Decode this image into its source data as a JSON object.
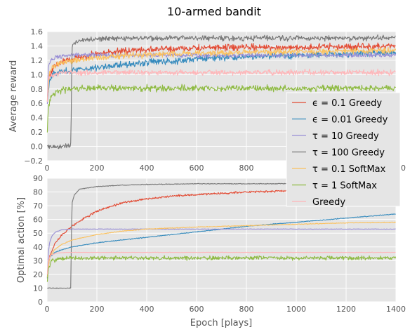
{
  "title": "10-armed bandit",
  "colors": {
    "background": "#e5e5e5",
    "grid": "#ffffff",
    "eps01": "#e24a33",
    "eps001": "#348abd",
    "tau10": "#988ed5",
    "tau100": "#777777",
    "tau01": "#fbc15e",
    "tau1": "#8eba42",
    "greedy": "#ffb5b8"
  },
  "legend": [
    {
      "key": "eps01",
      "label": "ϵ = 0.1 Greedy"
    },
    {
      "key": "eps001",
      "label": "ϵ = 0.01 Greedy"
    },
    {
      "key": "tau10",
      "label": "τ = 10 Greedy"
    },
    {
      "key": "tau100",
      "label": "τ = 100 Greedy"
    },
    {
      "key": "tau01",
      "label": "τ = 0.1 SoftMax"
    },
    {
      "key": "tau1",
      "label": "τ = 1 SoftMax"
    },
    {
      "key": "greedy",
      "label": "Greedy"
    }
  ],
  "chart_data": [
    {
      "type": "line",
      "ylabel": "Average reward",
      "xlabel": "",
      "xlim": [
        0,
        1400
      ],
      "ylim": [
        -0.2,
        1.6
      ],
      "xticks": [
        0,
        200,
        400,
        600,
        800,
        1000,
        1200,
        1400
      ],
      "xticklabels": [
        "0",
        "200",
        "400",
        "600",
        "800",
        "",
        "",
        "1400"
      ],
      "yticks": [
        -0.2,
        0.0,
        0.2,
        0.4,
        0.6,
        0.8,
        1.0,
        1.2,
        1.4,
        1.6
      ],
      "yticklabels": [
        "−0.2",
        "0.0",
        "0.2",
        "0.4",
        "0.6",
        "0.8",
        "1.0",
        "1.2",
        "1.4",
        "1.6"
      ],
      "grid": true,
      "noise": {
        "eps01": 0.05,
        "eps001": 0.05,
        "tau10": 0.035,
        "tau100": 0.04,
        "tau01": 0.045,
        "tau1": 0.045,
        "greedy": 0.04
      },
      "series": [
        {
          "key": "eps01",
          "x": [
            1,
            10,
            30,
            60,
            100,
            150,
            200,
            300,
            400,
            600,
            800,
            1000,
            1200,
            1400
          ],
          "y": [
            0.62,
            1.0,
            1.12,
            1.18,
            1.22,
            1.26,
            1.29,
            1.33,
            1.35,
            1.37,
            1.38,
            1.38,
            1.39,
            1.39
          ]
        },
        {
          "key": "eps001",
          "x": [
            1,
            10,
            30,
            60,
            100,
            200,
            300,
            400,
            500,
            600,
            800,
            1000,
            1200,
            1400
          ],
          "y": [
            0.62,
            0.95,
            1.02,
            1.04,
            1.06,
            1.1,
            1.14,
            1.17,
            1.19,
            1.22,
            1.25,
            1.27,
            1.29,
            1.31
          ]
        },
        {
          "key": "tau10",
          "x": [
            1,
            5,
            15,
            30,
            60,
            100,
            200,
            400,
            600,
            800,
            1000,
            1200,
            1400
          ],
          "y": [
            0.6,
            1.1,
            1.2,
            1.24,
            1.26,
            1.27,
            1.27,
            1.27,
            1.27,
            1.27,
            1.27,
            1.27,
            1.27
          ]
        },
        {
          "key": "tau100",
          "x": [
            1,
            5,
            20,
            60,
            90,
            96,
            100,
            110,
            130,
            200,
            400,
            600,
            800,
            1000,
            1200,
            1400
          ],
          "y": [
            0.0,
            0.0,
            -0.01,
            0.0,
            0.01,
            0.05,
            1.38,
            1.44,
            1.48,
            1.5,
            1.51,
            1.51,
            1.51,
            1.51,
            1.51,
            1.51
          ]
        },
        {
          "key": "tau01",
          "x": [
            1,
            10,
            30,
            60,
            100,
            200,
            300,
            400,
            600,
            800,
            1000,
            1200,
            1400
          ],
          "y": [
            0.65,
            1.05,
            1.13,
            1.17,
            1.19,
            1.23,
            1.26,
            1.28,
            1.3,
            1.31,
            1.32,
            1.33,
            1.34
          ]
        },
        {
          "key": "tau1",
          "x": [
            1,
            5,
            15,
            40,
            80,
            150,
            300,
            600,
            900,
            1200,
            1400
          ],
          "y": [
            0.2,
            0.55,
            0.7,
            0.77,
            0.8,
            0.81,
            0.81,
            0.81,
            0.81,
            0.81,
            0.81
          ]
        },
        {
          "key": "greedy",
          "x": [
            1,
            5,
            15,
            40,
            80,
            150,
            300,
            600,
            900,
            1200,
            1400
          ],
          "y": [
            0.6,
            0.95,
            1.0,
            1.02,
            1.03,
            1.03,
            1.03,
            1.03,
            1.03,
            1.03,
            1.03
          ]
        }
      ]
    },
    {
      "type": "line",
      "ylabel": "Optimal action [%]",
      "xlabel": "Epoch [plays]",
      "xlim": [
        0,
        1400
      ],
      "ylim": [
        0,
        90
      ],
      "xticks": [
        0,
        200,
        400,
        600,
        800,
        1000,
        1200,
        1400
      ],
      "xticklabels": [
        "0",
        "200",
        "400",
        "600",
        "800",
        "1000",
        "1200",
        "1400"
      ],
      "yticks": [
        0,
        10,
        20,
        30,
        40,
        50,
        60,
        70,
        80,
        90
      ],
      "yticklabels": [
        "0",
        "10",
        "20",
        "30",
        "40",
        "50",
        "60",
        "70",
        "80",
        "90"
      ],
      "grid": true,
      "noise": {
        "eps01": 0.8,
        "eps001": 0.3,
        "tau10": 0.2,
        "tau100": 0.3,
        "tau01": 0.3,
        "tau1": 1.6,
        "greedy": 0.2
      },
      "series": [
        {
          "key": "eps01",
          "x": [
            1,
            10,
            30,
            60,
            100,
            150,
            200,
            300,
            400,
            500,
            600,
            800,
            1000,
            1200,
            1400
          ],
          "y": [
            18,
            33,
            42,
            49,
            55,
            61,
            66,
            72,
            75,
            77,
            78,
            80,
            81,
            81.5,
            82
          ]
        },
        {
          "key": "eps001",
          "x": [
            1,
            10,
            30,
            60,
            100,
            200,
            300,
            400,
            600,
            800,
            1000,
            1200,
            1400
          ],
          "y": [
            17,
            32,
            36,
            38,
            40,
            43,
            45,
            47,
            51,
            55,
            58,
            61,
            64
          ]
        },
        {
          "key": "tau10",
          "x": [
            1,
            5,
            10,
            20,
            35,
            60,
            100,
            200,
            400,
            800,
            1400
          ],
          "y": [
            18,
            35,
            43,
            48,
            51,
            52.5,
            53,
            53,
            53,
            53,
            53
          ]
        },
        {
          "key": "tau100",
          "x": [
            1,
            10,
            60,
            95,
            100,
            110,
            130,
            200,
            300,
            400,
            600,
            800,
            1000,
            1200,
            1400
          ],
          "y": [
            10,
            10,
            10,
            10,
            72,
            78,
            82,
            84,
            85,
            85.5,
            86,
            86,
            86,
            86,
            86
          ]
        },
        {
          "key": "tau01",
          "x": [
            1,
            10,
            30,
            60,
            100,
            150,
            200,
            300,
            400,
            600,
            800,
            1000,
            1200,
            1400
          ],
          "y": [
            18,
            32,
            38,
            42,
            45,
            47,
            49,
            51.5,
            53,
            54.5,
            55.5,
            56.5,
            57.5,
            58
          ]
        },
        {
          "key": "tau1",
          "x": [
            1,
            5,
            15,
            40,
            80,
            150,
            300,
            600,
            900,
            1200,
            1400
          ],
          "y": [
            15,
            24,
            29,
            31,
            32,
            32,
            32,
            32,
            32,
            32,
            32
          ]
        },
        {
          "key": "greedy",
          "x": [
            1,
            5,
            15,
            40,
            80,
            150,
            300,
            600,
            900,
            1200,
            1400
          ],
          "y": [
            20,
            30,
            34,
            35.5,
            36,
            36,
            36,
            36,
            36,
            36,
            36
          ]
        }
      ]
    }
  ]
}
